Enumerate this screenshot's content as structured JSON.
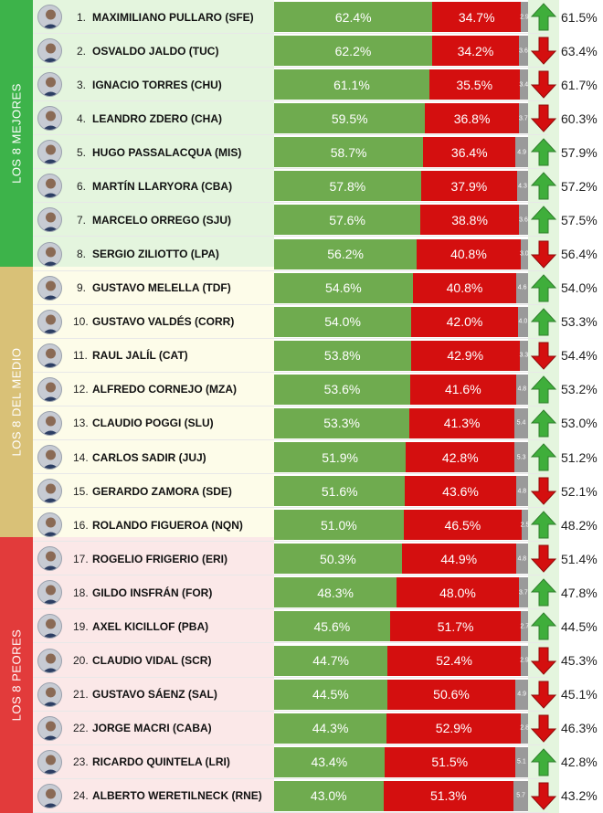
{
  "groups": [
    {
      "label": "LOS 8 MEJORES",
      "color": "#3db34a",
      "band": "#e4f5de"
    },
    {
      "label": "LOS 8 DEL MEDIO",
      "color": "#d9c177",
      "band": "#fdfce9"
    },
    {
      "label": "LOS 8 PEORES",
      "color": "#e23b3b",
      "band": "#fbe8e8"
    }
  ],
  "colors": {
    "positive": "#6fab4f",
    "negative": "#d40f0f",
    "other": "#9a9a9a",
    "arrow_up": "#3fae3b",
    "arrow_down": "#d40f0f",
    "trend_column": "#e4f5de"
  },
  "chart_data": {
    "type": "bar",
    "stacked": true,
    "x_range": [
      0,
      100
    ],
    "rows": [
      {
        "rank": "1.",
        "name": "MAXIMILIANO PULLARO (SFE)",
        "positive": 62.4,
        "negative": 34.7,
        "other": 2.9,
        "trend": "up",
        "previous": 61.5
      },
      {
        "rank": "2.",
        "name": "OSVALDO JALDO (TUC)",
        "positive": 62.2,
        "negative": 34.2,
        "other": 3.6,
        "trend": "down",
        "previous": 63.4
      },
      {
        "rank": "3.",
        "name": "IGNACIO TORRES (CHU)",
        "positive": 61.1,
        "negative": 35.5,
        "other": 3.4,
        "trend": "down",
        "previous": 61.7
      },
      {
        "rank": "4.",
        "name": "LEANDRO ZDERO (CHA)",
        "positive": 59.5,
        "negative": 36.8,
        "other": 3.7,
        "trend": "down",
        "previous": 60.3
      },
      {
        "rank": "5.",
        "name": "HUGO PASSALACQUA (MIS)",
        "positive": 58.7,
        "negative": 36.4,
        "other": 4.9,
        "trend": "up",
        "previous": 57.9
      },
      {
        "rank": "6.",
        "name": "MARTÍN LLARYORA (CBA)",
        "positive": 57.8,
        "negative": 37.9,
        "other": 4.3,
        "trend": "up",
        "previous": 57.2
      },
      {
        "rank": "7.",
        "name": "MARCELO ORREGO (SJU)",
        "positive": 57.6,
        "negative": 38.8,
        "other": 3.6,
        "trend": "up",
        "previous": 57.5
      },
      {
        "rank": "8.",
        "name": "SERGIO ZILIOTTO (LPA)",
        "positive": 56.2,
        "negative": 40.8,
        "other": 3.0,
        "trend": "down",
        "previous": 56.4
      },
      {
        "rank": "9.",
        "name": "GUSTAVO MELELLA (TDF)",
        "positive": 54.6,
        "negative": 40.8,
        "other": 4.6,
        "trend": "up",
        "previous": 54.0
      },
      {
        "rank": "10.",
        "name": "GUSTAVO VALDÉS (CORR)",
        "positive": 54.0,
        "negative": 42.0,
        "other": 4.0,
        "trend": "up",
        "previous": 53.3
      },
      {
        "rank": "11.",
        "name": "RAUL JALÍL (CAT)",
        "positive": 53.8,
        "negative": 42.9,
        "other": 3.3,
        "trend": "down",
        "previous": 54.4
      },
      {
        "rank": "12.",
        "name": "ALFREDO CORNEJO (MZA)",
        "positive": 53.6,
        "negative": 41.6,
        "other": 4.8,
        "trend": "up",
        "previous": 53.2
      },
      {
        "rank": "13.",
        "name": "CLAUDIO POGGI (SLU)",
        "positive": 53.3,
        "negative": 41.3,
        "other": 5.4,
        "trend": "up",
        "previous": 53.0
      },
      {
        "rank": "14.",
        "name": "CARLOS SADIR (JUJ)",
        "positive": 51.9,
        "negative": 42.8,
        "other": 5.3,
        "trend": "up",
        "previous": 51.2
      },
      {
        "rank": "15.",
        "name": "GERARDO ZAMORA (SDE)",
        "positive": 51.6,
        "negative": 43.6,
        "other": 4.8,
        "trend": "down",
        "previous": 52.1
      },
      {
        "rank": "16.",
        "name": "ROLANDO FIGUEROA (NQN)",
        "positive": 51.0,
        "negative": 46.5,
        "other": 2.5,
        "trend": "up",
        "previous": 48.2
      },
      {
        "rank": "17.",
        "name": "ROGELIO FRIGERIO (ERI)",
        "positive": 50.3,
        "negative": 44.9,
        "other": 4.8,
        "trend": "down",
        "previous": 51.4
      },
      {
        "rank": "18.",
        "name": "GILDO INSFRÁN (FOR)",
        "positive": 48.3,
        "negative": 48.0,
        "other": 3.7,
        "trend": "up",
        "previous": 47.8
      },
      {
        "rank": "19.",
        "name": "AXEL KICILLOF (PBA)",
        "positive": 45.6,
        "negative": 51.7,
        "other": 2.7,
        "trend": "up",
        "previous": 44.5
      },
      {
        "rank": "20.",
        "name": "CLAUDIO VIDAL (SCR)",
        "positive": 44.7,
        "negative": 52.4,
        "other": 2.9,
        "trend": "down",
        "previous": 45.3
      },
      {
        "rank": "21.",
        "name": "GUSTAVO SÁENZ (SAL)",
        "positive": 44.5,
        "negative": 50.6,
        "other": 4.9,
        "trend": "down",
        "previous": 45.1
      },
      {
        "rank": "22.",
        "name": "JORGE MACRI (CABA)",
        "positive": 44.3,
        "negative": 52.9,
        "other": 2.8,
        "trend": "down",
        "previous": 46.3
      },
      {
        "rank": "23.",
        "name": "RICARDO QUINTELA (LRI)",
        "positive": 43.4,
        "negative": 51.5,
        "other": 5.1,
        "trend": "up",
        "previous": 42.8
      },
      {
        "rank": "24.",
        "name": "ALBERTO WERETILNECK (RNE)",
        "positive": 43.0,
        "negative": 51.3,
        "other": 5.7,
        "trend": "down",
        "previous": 43.2
      }
    ]
  }
}
